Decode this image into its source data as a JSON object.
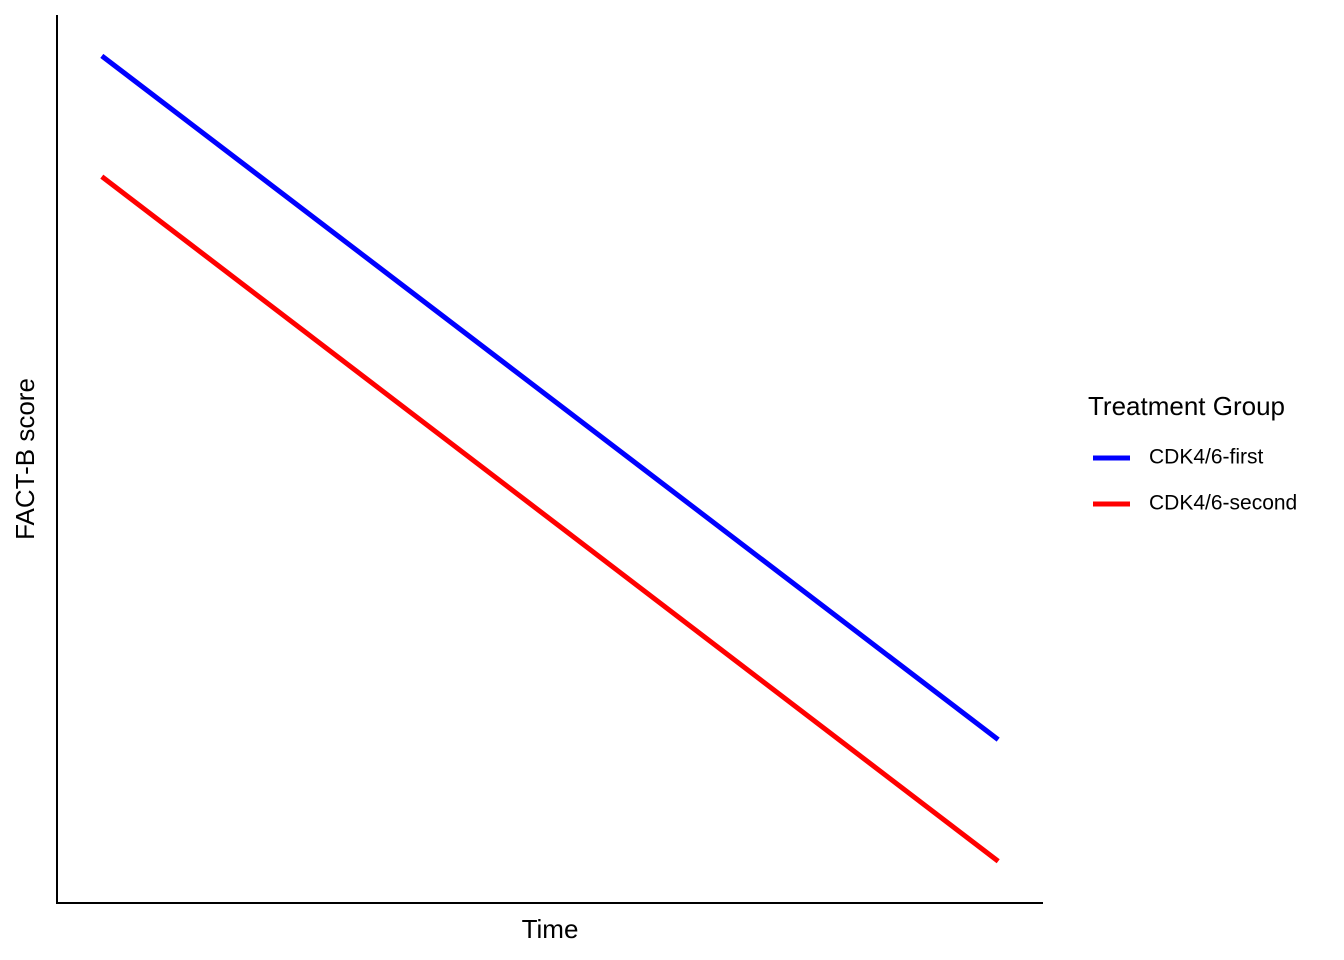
{
  "chart_data": {
    "type": "line",
    "x_label": "Time",
    "y_label": "FACT-B score",
    "x": [
      0,
      1
    ],
    "xlim": [
      -0.05,
      1.05
    ],
    "ylim": [
      0,
      100
    ],
    "legend_title": "Treatment Group",
    "legend": "right",
    "series": [
      {
        "name": "CDK4/6-first",
        "color": "#0000ff",
        "values": [
          95.4,
          18.4
        ]
      },
      {
        "name": "CDK4/6-second",
        "color": "#ff0000",
        "values": [
          81.8,
          4.7
        ]
      }
    ]
  }
}
